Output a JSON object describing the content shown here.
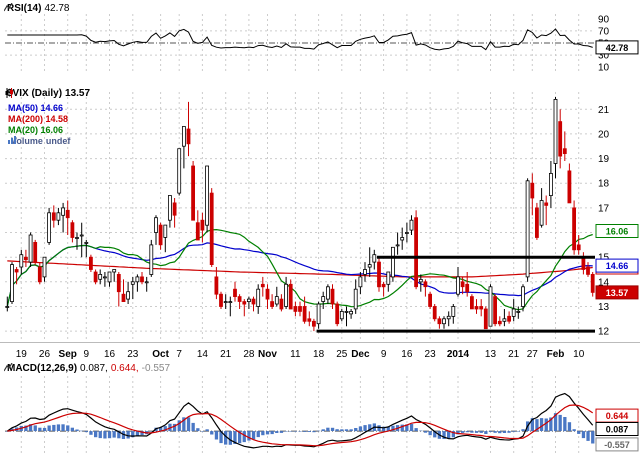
{
  "colors": {
    "up": "#000000",
    "down": "#cc0000",
    "ma20": "#008000",
    "ma50": "#0000cc",
    "ma200": "#cc0000",
    "macd_line": "#000000",
    "macd_signal": "#cc0000",
    "macd_hist": "#4a77c4",
    "rsi_line": "#000000",
    "grid": "#cccccc",
    "trendline": "#000000",
    "last_price_box_bg": "#cc0000",
    "volume_label": "#4a5a8a",
    "hist_value_text": "#888888"
  },
  "panels": {
    "rsi": {
      "name": "RSI(14)",
      "value": "42.78",
      "ticks": [
        "90",
        "70",
        "50",
        "30",
        "10"
      ]
    },
    "price": {
      "title": "$VIX (Daily)",
      "value": "13.57",
      "legend": [
        {
          "label": "MA(50) 14.66"
        },
        {
          "label": "MA(200) 14.58"
        },
        {
          "label": "MA(20) 16.06"
        }
      ],
      "volume_label": "Volume",
      "volume_value": "undef",
      "ticks": [
        "21",
        "20",
        "19",
        "18",
        "17",
        "16",
        "15",
        "14",
        "13",
        "12"
      ]
    },
    "macd": {
      "name": "MACD(12,26,9)",
      "v1": "0.087,",
      "v2": "0.644,",
      "v3": "-0.557"
    }
  },
  "axis_boxes": [
    {
      "panel": "rsi",
      "value": 42.78,
      "label": "42.78",
      "style": "black"
    },
    {
      "panel": "price",
      "value": 16.06,
      "label": "16.06",
      "style": "green"
    },
    {
      "panel": "price",
      "value": 14.58,
      "label": "14.58",
      "style": "red"
    },
    {
      "panel": "price",
      "value": 14.66,
      "label": "14.66",
      "style": "blue"
    },
    {
      "panel": "price",
      "value": 13.57,
      "label": "13.57",
      "style": "red-fill"
    },
    {
      "panel": "macd",
      "value": 0.644,
      "label": "0.644",
      "style": "red"
    },
    {
      "panel": "macd",
      "value": 0.087,
      "label": "0.087",
      "style": "black"
    },
    {
      "panel": "macd",
      "value": -0.557,
      "label": "-0.557",
      "style": "gray"
    }
  ],
  "chart_data": {
    "type": "candlestick",
    "symbol": "$VIX",
    "timeframe": "Daily",
    "last_close": 13.57,
    "price_axis": {
      "ticks": [
        21,
        20,
        19,
        18,
        17,
        16,
        15,
        14,
        13,
        12
      ],
      "min": 11.6,
      "max": 21.7
    },
    "x_labels": [
      {
        "t": "19",
        "i": 3
      },
      {
        "t": "26",
        "i": 8
      },
      {
        "t": "Sep",
        "i": 13,
        "b": 1
      },
      {
        "t": "9",
        "i": 17
      },
      {
        "t": "16",
        "i": 22
      },
      {
        "t": "23",
        "i": 27
      },
      {
        "t": "Oct",
        "i": 33,
        "b": 1
      },
      {
        "t": "7",
        "i": 37
      },
      {
        "t": "14",
        "i": 42
      },
      {
        "t": "21",
        "i": 47
      },
      {
        "t": "28",
        "i": 52
      },
      {
        "t": "Nov",
        "i": 56,
        "b": 1
      },
      {
        "t": "11",
        "i": 62
      },
      {
        "t": "18",
        "i": 67
      },
      {
        "t": "25",
        "i": 72
      },
      {
        "t": "Dec",
        "i": 76,
        "b": 1
      },
      {
        "t": "9",
        "i": 81
      },
      {
        "t": "16",
        "i": 86
      },
      {
        "t": "23",
        "i": 91
      },
      {
        "t": "2014",
        "i": 97,
        "b": 1
      },
      {
        "t": "13",
        "i": 104
      },
      {
        "t": "21",
        "i": 109
      },
      {
        "t": "27",
        "i": 113
      },
      {
        "t": "Feb",
        "i": 118,
        "b": 1
      },
      {
        "t": "10",
        "i": 123
      }
    ],
    "ohlc": [
      [
        13.0,
        13.4,
        12.8,
        13.0
      ],
      [
        13.2,
        14.8,
        13.1,
        14.7
      ],
      [
        14.5,
        14.6,
        13.9,
        14.4
      ],
      [
        14.6,
        15.3,
        14.3,
        15.1
      ],
      [
        15.0,
        15.3,
        14.6,
        14.9
      ],
      [
        14.8,
        16.0,
        14.6,
        15.9
      ],
      [
        15.6,
        15.7,
        14.7,
        14.8
      ],
      [
        14.6,
        14.8,
        13.9,
        14.0
      ],
      [
        14.2,
        15.0,
        14.0,
        15.0
      ],
      [
        15.6,
        17.0,
        15.5,
        16.8
      ],
      [
        16.8,
        17.1,
        16.2,
        16.5
      ],
      [
        16.5,
        17.0,
        16.3,
        16.8
      ],
      [
        16.7,
        17.2,
        16.0,
        17.0
      ],
      [
        16.9,
        17.3,
        15.9,
        16.6
      ],
      [
        16.4,
        16.5,
        15.6,
        15.8
      ],
      [
        15.8,
        16.0,
        15.3,
        15.8
      ],
      [
        15.9,
        16.4,
        15.0,
        15.9
      ],
      [
        15.6,
        15.7,
        15.0,
        15.6
      ],
      [
        15.0,
        15.1,
        14.4,
        14.5
      ],
      [
        14.4,
        14.5,
        13.9,
        14.0
      ],
      [
        14.1,
        14.5,
        13.9,
        14.3
      ],
      [
        14.2,
        14.4,
        13.8,
        14.2
      ],
      [
        14.0,
        14.4,
        13.8,
        14.4
      ],
      [
        14.4,
        14.5,
        14.0,
        14.5
      ],
      [
        14.3,
        14.4,
        13.0,
        13.6
      ],
      [
        13.5,
        14.1,
        13.2,
        13.2
      ],
      [
        13.3,
        14.0,
        13.1,
        13.6
      ],
      [
        13.9,
        14.2,
        13.3,
        14.0
      ],
      [
        14.0,
        14.3,
        13.6,
        14.2
      ],
      [
        14.2,
        14.4,
        13.9,
        14.0
      ],
      [
        14.0,
        14.2,
        13.6,
        14.0
      ],
      [
        14.3,
        15.7,
        14.2,
        15.5
      ],
      [
        16.0,
        16.7,
        15.5,
        16.6
      ],
      [
        16.3,
        16.4,
        15.3,
        15.5
      ],
      [
        15.8,
        16.3,
        15.2,
        16.3
      ],
      [
        16.5,
        17.5,
        16.2,
        17.5
      ],
      [
        17.2,
        17.4,
        16.2,
        16.7
      ],
      [
        17.6,
        19.4,
        17.5,
        19.4
      ],
      [
        19.5,
        20.3,
        18.6,
        20.3
      ],
      [
        20.2,
        21.3,
        19.1,
        19.6
      ],
      [
        18.7,
        18.9,
        16.5,
        16.5
      ],
      [
        16.4,
        16.9,
        15.7,
        15.7
      ],
      [
        16.5,
        16.8,
        15.6,
        16.1
      ],
      [
        16.3,
        18.7,
        16.0,
        18.7
      ],
      [
        17.6,
        17.8,
        14.6,
        14.7
      ],
      [
        14.2,
        14.6,
        13.3,
        13.5
      ],
      [
        13.5,
        13.6,
        12.9,
        13.0
      ],
      [
        13.2,
        13.5,
        12.9,
        13.2
      ],
      [
        13.2,
        13.4,
        12.6,
        13.2
      ],
      [
        13.7,
        14.0,
        13.2,
        13.4
      ],
      [
        13.4,
        13.5,
        12.9,
        13.2
      ],
      [
        13.2,
        13.3,
        12.6,
        13.1
      ],
      [
        13.2,
        13.4,
        12.9,
        13.3
      ],
      [
        13.3,
        13.4,
        12.8,
        13.1
      ],
      [
        13.0,
        13.9,
        12.7,
        13.7
      ],
      [
        13.9,
        14.2,
        13.4,
        13.8
      ],
      [
        13.7,
        13.9,
        12.9,
        13.3
      ],
      [
        13.2,
        13.5,
        12.9,
        13.0
      ],
      [
        13.1,
        13.8,
        13.0,
        13.4
      ],
      [
        13.3,
        13.5,
        12.8,
        12.9
      ],
      [
        13.0,
        14.2,
        12.9,
        13.9
      ],
      [
        13.9,
        14.1,
        12.9,
        12.9
      ],
      [
        13.0,
        13.2,
        12.6,
        12.8
      ],
      [
        13.0,
        13.2,
        12.6,
        12.8
      ],
      [
        13.0,
        13.4,
        12.3,
        12.4
      ],
      [
        12.5,
        12.8,
        12.2,
        12.4
      ],
      [
        12.4,
        12.5,
        12.0,
        12.2
      ],
      [
        12.3,
        13.2,
        12.1,
        13.1
      ],
      [
        13.2,
        13.6,
        12.9,
        13.4
      ],
      [
        13.3,
        13.9,
        13.1,
        13.8
      ],
      [
        13.7,
        13.9,
        12.9,
        13.1
      ],
      [
        13.1,
        13.2,
        12.2,
        12.3
      ],
      [
        12.5,
        12.9,
        12.4,
        12.8
      ],
      [
        12.8,
        13.0,
        12.2,
        12.8
      ],
      [
        12.7,
        12.9,
        12.5,
        12.8
      ],
      [
        12.9,
        14.1,
        12.7,
        13.7
      ],
      [
        13.8,
        14.4,
        13.5,
        14.2
      ],
      [
        14.3,
        14.8,
        14.0,
        14.5
      ],
      [
        14.6,
        15.4,
        14.2,
        14.7
      ],
      [
        14.8,
        15.3,
        14.5,
        15.1
      ],
      [
        14.8,
        15.0,
        13.6,
        13.8
      ],
      [
        13.9,
        14.0,
        13.4,
        13.8
      ],
      [
        13.9,
        14.4,
        13.6,
        14.4
      ],
      [
        14.2,
        15.4,
        14.0,
        15.4
      ],
      [
        15.5,
        16.0,
        15.1,
        15.5
      ],
      [
        15.7,
        16.2,
        15.3,
        15.8
      ],
      [
        16.0,
        16.4,
        15.6,
        16.0
      ],
      [
        16.1,
        16.7,
        15.9,
        16.5
      ],
      [
        16.6,
        16.9,
        13.7,
        13.8
      ],
      [
        14.0,
        14.3,
        13.6,
        14.1
      ],
      [
        14.0,
        14.1,
        13.4,
        13.8
      ],
      [
        13.5,
        13.6,
        12.9,
        13.0
      ],
      [
        13.0,
        13.1,
        12.4,
        12.5
      ],
      [
        12.5,
        12.6,
        12.1,
        12.3
      ],
      [
        12.3,
        12.6,
        12.1,
        12.5
      ],
      [
        12.5,
        12.8,
        12.2,
        12.6
      ],
      [
        12.6,
        13.1,
        12.3,
        13.0
      ],
      [
        13.5,
        14.6,
        13.4,
        14.2
      ],
      [
        14.0,
        14.2,
        13.5,
        13.8
      ],
      [
        13.9,
        14.4,
        13.4,
        13.6
      ],
      [
        13.4,
        13.5,
        12.9,
        12.9
      ],
      [
        13.0,
        13.3,
        12.7,
        12.9
      ],
      [
        13.0,
        13.3,
        12.6,
        12.9
      ],
      [
        12.9,
        13.0,
        12.1,
        12.1
      ],
      [
        12.2,
        13.9,
        12.2,
        13.8
      ],
      [
        13.4,
        13.5,
        12.2,
        12.3
      ],
      [
        12.4,
        12.6,
        12.2,
        12.3
      ],
      [
        12.4,
        12.9,
        12.2,
        12.5
      ],
      [
        12.6,
        12.8,
        12.3,
        12.4
      ],
      [
        12.6,
        13.3,
        12.4,
        12.9
      ],
      [
        12.8,
        13.0,
        12.5,
        12.8
      ],
      [
        13.0,
        13.9,
        12.8,
        13.8
      ],
      [
        14.2,
        18.2,
        14.0,
        18.1
      ],
      [
        18.0,
        18.4,
        16.7,
        17.4
      ],
      [
        17.0,
        17.2,
        15.7,
        15.8
      ],
      [
        16.3,
        17.8,
        16.2,
        17.3
      ],
      [
        17.2,
        17.5,
        16.3,
        17.1
      ],
      [
        17.5,
        18.9,
        17.0,
        18.4
      ],
      [
        18.8,
        21.5,
        18.2,
        21.4
      ],
      [
        20.5,
        21.0,
        18.6,
        19.1
      ],
      [
        19.4,
        20.1,
        18.9,
        19.2
      ],
      [
        18.5,
        18.8,
        17.2,
        17.2
      ],
      [
        17.0,
        17.3,
        15.1,
        15.3
      ],
      [
        15.5,
        15.9,
        15.1,
        15.3
      ],
      [
        15.0,
        15.2,
        14.3,
        14.5
      ],
      [
        14.6,
        14.8,
        14.2,
        14.3
      ],
      [
        14.3,
        14.4,
        13.4,
        13.57
      ]
    ],
    "overlays": {
      "ma20_period": 20,
      "ma20_current": 16.06,
      "ma50_period": 50,
      "ma50_current": 14.66,
      "ma200_period": 200,
      "ma200_current": 14.58,
      "ma200_keypoints": [
        [
          0,
          14.85
        ],
        [
          15,
          14.7
        ],
        [
          30,
          14.55
        ],
        [
          50,
          14.4
        ],
        [
          70,
          14.3
        ],
        [
          85,
          14.2
        ],
        [
          100,
          14.2
        ],
        [
          110,
          14.3
        ],
        [
          120,
          14.45
        ],
        [
          126,
          14.58
        ]
      ]
    },
    "trendlines": [
      {
        "price": 15.0,
        "from": 80,
        "to": 126
      },
      {
        "price": 12.0,
        "from": 67,
        "to": 126
      }
    ],
    "rsi": {
      "period": 14,
      "current": 42.78,
      "ticks": [
        90,
        70,
        50,
        30,
        10
      ],
      "midline": 50
    },
    "macd": {
      "fast": 12,
      "slow": 26,
      "signal": 9,
      "current_macd": 0.087,
      "current_signal": 0.644,
      "current_hist": -0.557
    }
  }
}
